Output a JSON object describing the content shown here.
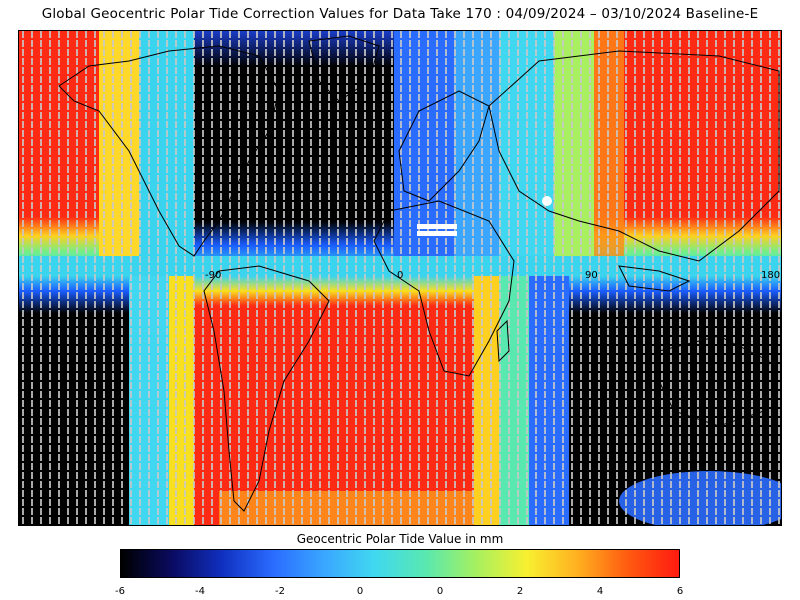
{
  "title": "Global Geocentric Polar Tide Correction Values for Data Take 170 : 04/09/2024 – 03/10/2024 Baseline-E",
  "map": {
    "longitude_labels": [
      "-90",
      "0",
      "90",
      "180"
    ],
    "colors": {
      "very_low": "#000000",
      "low": "#1a5cff",
      "mid": "#33d6e6",
      "high_mid": "#ffe600",
      "high": "#ff1a1a",
      "track_dots": "#c8c8c8",
      "coastline": "#000000"
    }
  },
  "legend": {
    "title": "Geocentric Polar Tide Value in mm",
    "ticks": [
      "-6",
      "-4",
      "-2",
      "0",
      "0",
      "2",
      "4",
      "6"
    ],
    "colormap": [
      "#000000",
      "#0a0a60",
      "#1030c0",
      "#2a6cff",
      "#3aa6ff",
      "#40d8f0",
      "#58e8b0",
      "#a6f060",
      "#f8f030",
      "#ffb020",
      "#ff5a10",
      "#ff1a10"
    ]
  }
}
